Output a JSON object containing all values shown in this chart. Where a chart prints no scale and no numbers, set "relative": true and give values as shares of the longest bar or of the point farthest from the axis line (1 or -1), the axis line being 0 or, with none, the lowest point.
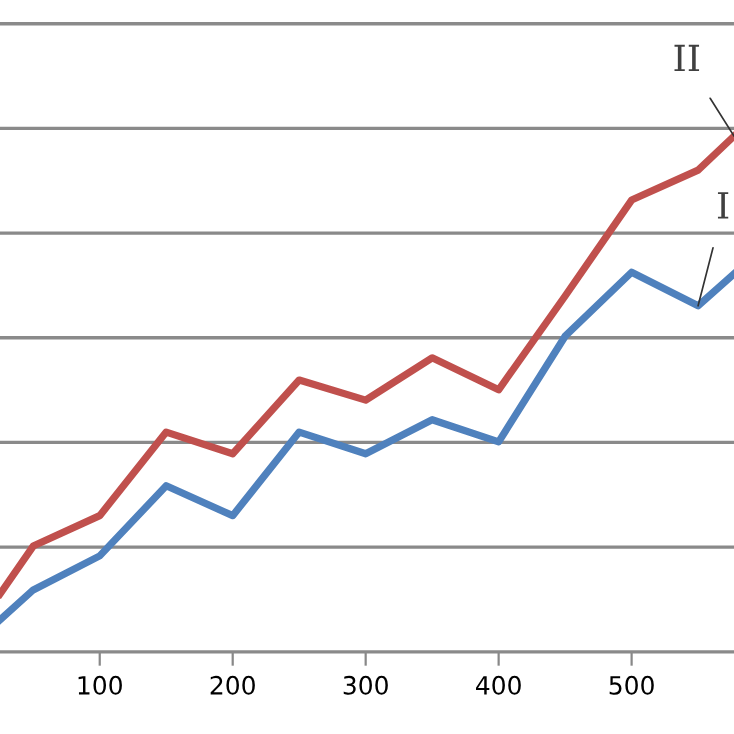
{
  "chart_data": {
    "type": "line",
    "relative": true,
    "x": [
      25,
      50,
      100,
      150,
      200,
      250,
      300,
      350,
      400,
      450,
      500,
      550,
      577
    ],
    "xlim": [
      25,
      577
    ],
    "xticks": [
      100,
      200,
      300,
      400,
      500
    ],
    "grid": "y",
    "marker": "none",
    "line_style": "solid",
    "series": [
      {
        "name": "II",
        "color": "#c0504d",
        "values": [
          0.112,
          0.205,
          0.264,
          0.426,
          0.384,
          0.527,
          0.488,
          0.57,
          0.508,
          0.69,
          0.876,
          0.934,
          1.0
        ]
      },
      {
        "name": "I",
        "color": "#4f81bd",
        "values": [
          0.062,
          0.12,
          0.186,
          0.322,
          0.264,
          0.426,
          0.384,
          0.45,
          0.407,
          0.612,
          0.736,
          0.671,
          0.733
        ]
      }
    ]
  }
}
